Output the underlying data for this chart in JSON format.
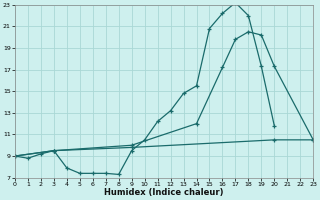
{
  "xlabel": "Humidex (Indice chaleur)",
  "xlim": [
    0,
    23
  ],
  "ylim": [
    7,
    23
  ],
  "xtick_vals": [
    0,
    1,
    2,
    3,
    4,
    5,
    6,
    7,
    8,
    9,
    10,
    11,
    12,
    13,
    14,
    15,
    16,
    17,
    18,
    19,
    20,
    21,
    22,
    23
  ],
  "ytick_vals": [
    7,
    9,
    11,
    13,
    15,
    17,
    19,
    21,
    23
  ],
  "bg_color": "#cef0ee",
  "grid_color": "#aad8d5",
  "line_color": "#1a6b6b",
  "line1_x": [
    0,
    1,
    2,
    3,
    4,
    5,
    6,
    7,
    8,
    9,
    10,
    11,
    12,
    13,
    14,
    15,
    16,
    17,
    18,
    19,
    20
  ],
  "line1_y": [
    9.0,
    8.8,
    9.2,
    9.5,
    7.9,
    7.4,
    7.4,
    7.4,
    7.3,
    9.5,
    10.5,
    12.2,
    13.2,
    14.8,
    15.5,
    20.8,
    22.2,
    23.2,
    22.0,
    17.3,
    11.8
  ],
  "line2_x": [
    0,
    3,
    9,
    14,
    16,
    17,
    18,
    19,
    20,
    23
  ],
  "line2_y": [
    9.0,
    9.5,
    10.0,
    12.0,
    17.2,
    19.8,
    20.5,
    20.2,
    17.3,
    10.5
  ],
  "line3_x": [
    0,
    3,
    9,
    20,
    23
  ],
  "line3_y": [
    9.0,
    9.5,
    9.8,
    10.5,
    10.5
  ]
}
